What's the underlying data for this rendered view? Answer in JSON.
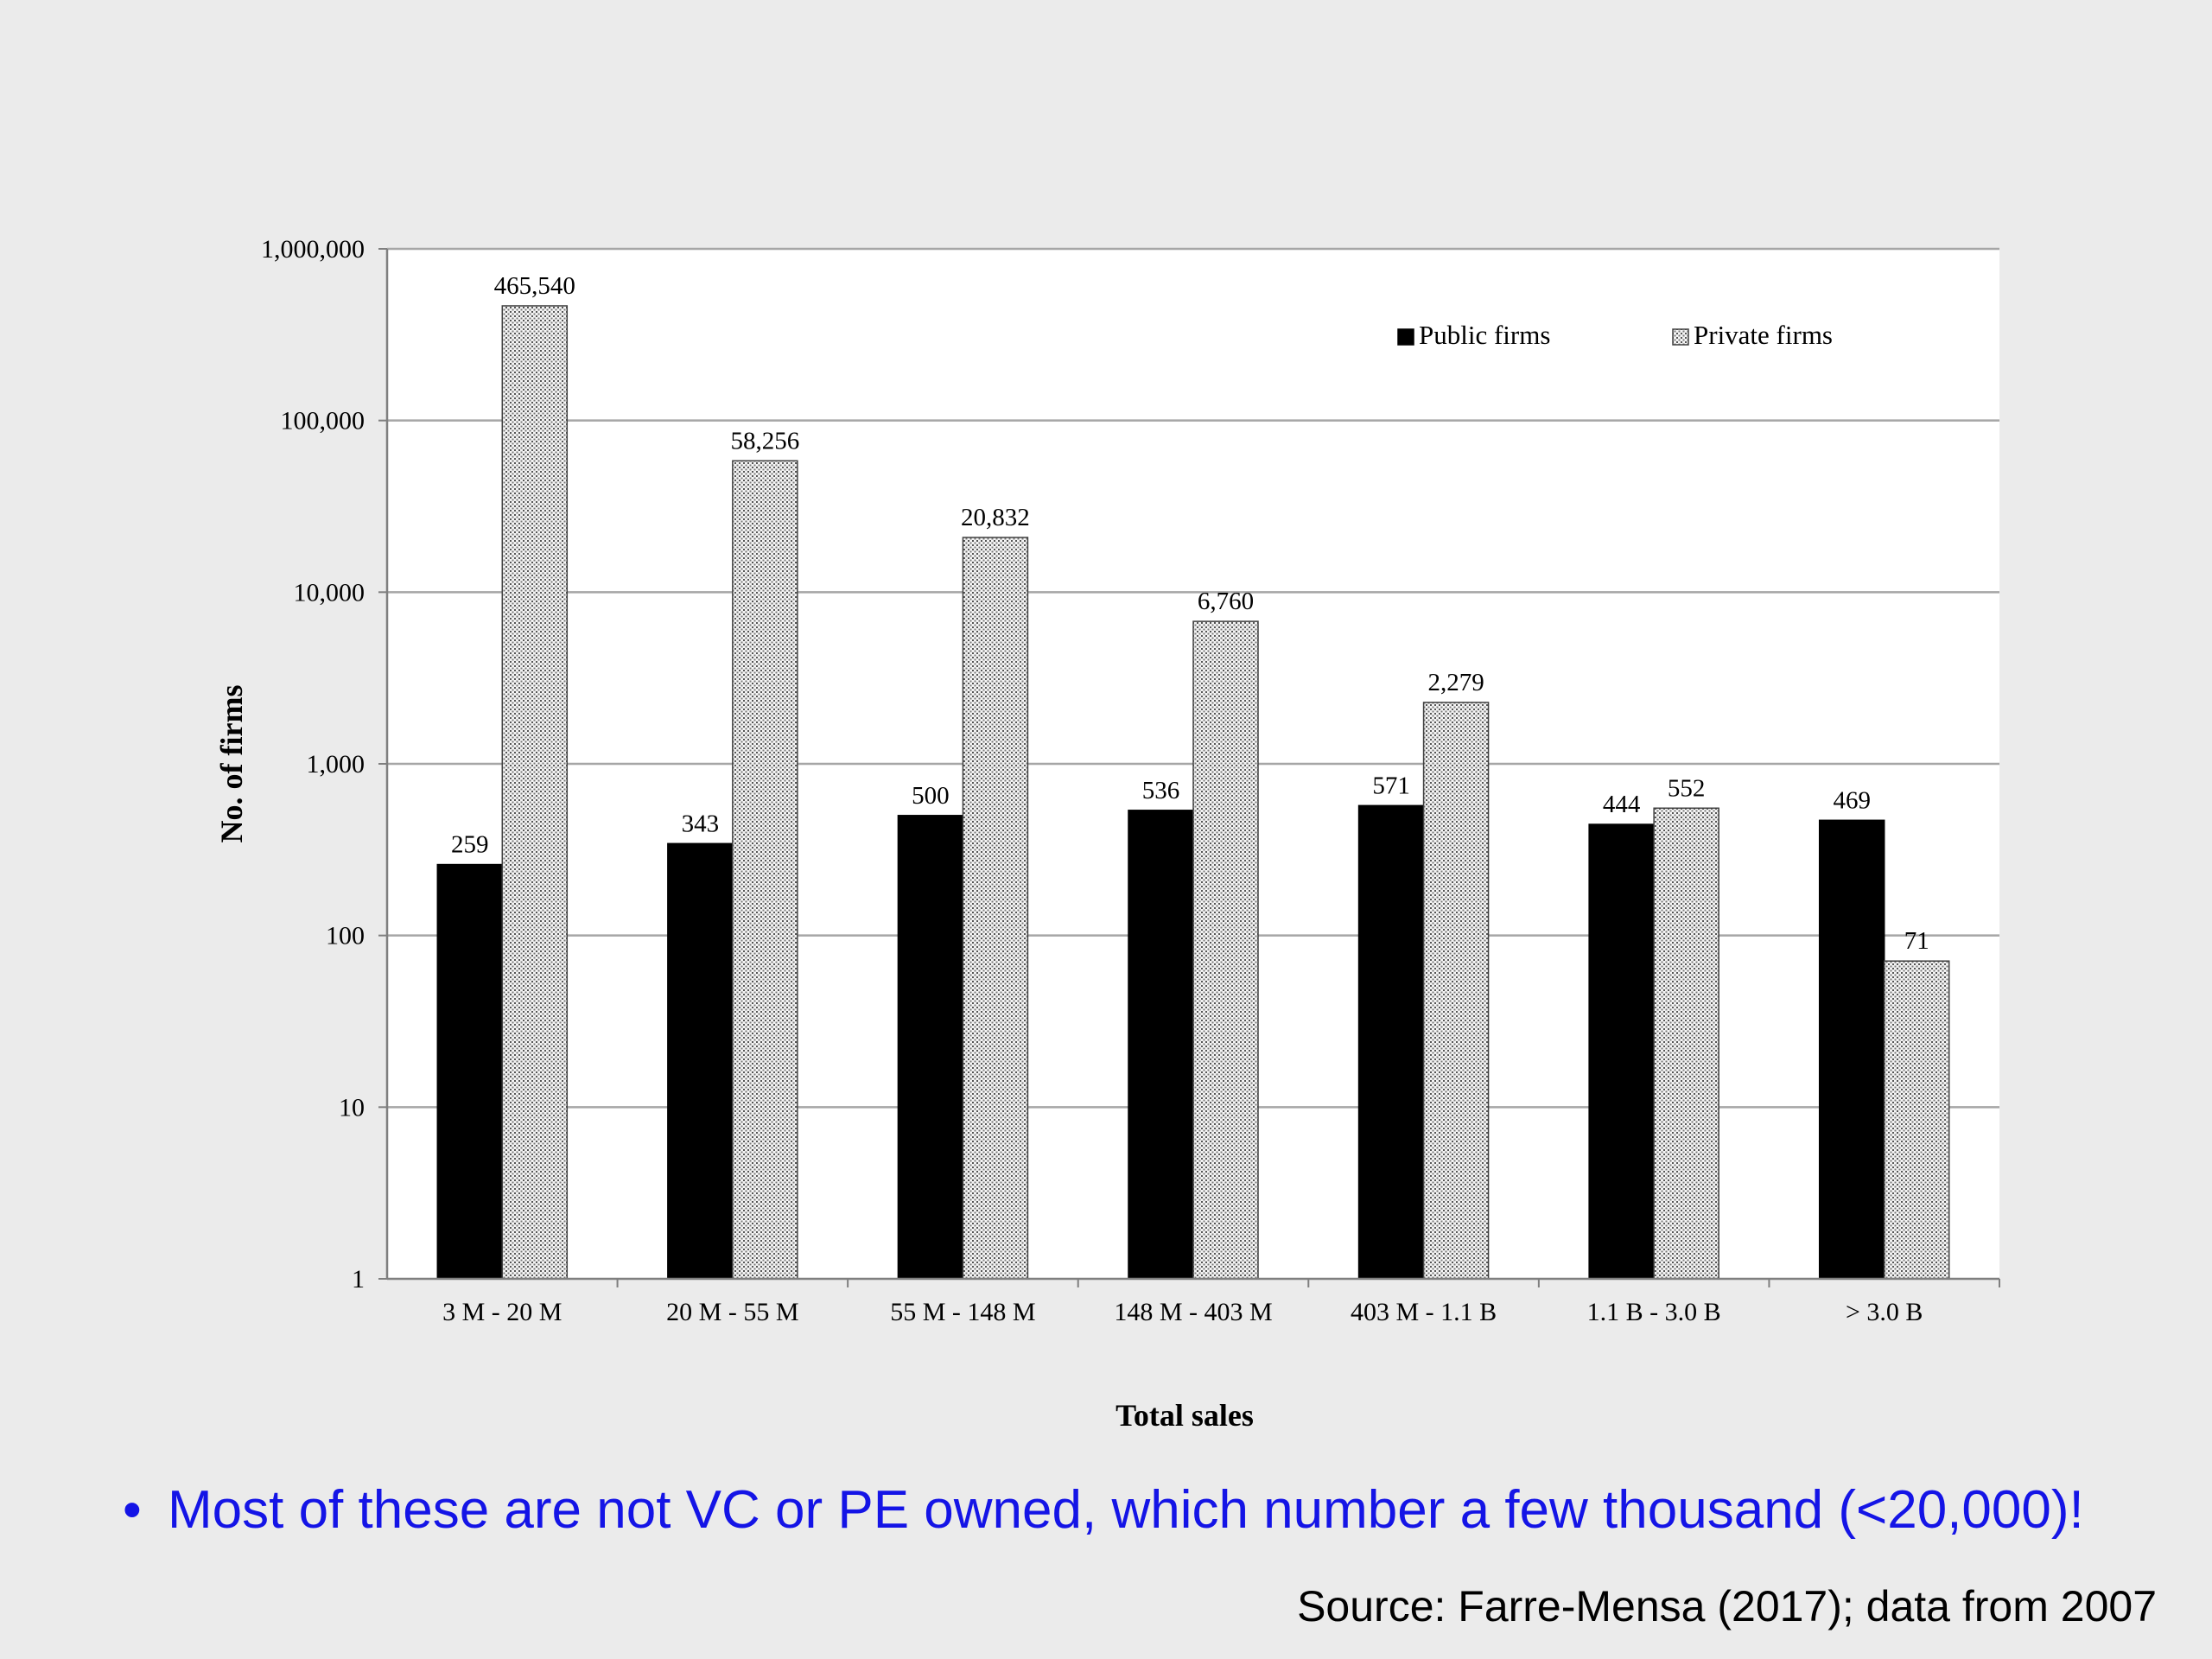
{
  "chart_data": {
    "type": "bar",
    "title": "",
    "xlabel": "Total sales",
    "ylabel": "No. of firms",
    "yscale": "log",
    "ylim": [
      1,
      1000000
    ],
    "yticks": [
      1,
      10,
      100,
      1000,
      10000,
      100000,
      1000000
    ],
    "ytick_labels": [
      "1",
      "10",
      "100",
      "1,000",
      "10,000",
      "100,000",
      "1,000,000"
    ],
    "grid": true,
    "legend_position": "top-right",
    "categories": [
      "3 M - 20 M",
      "20 M - 55 M",
      "55 M - 148 M",
      "148 M - 403 M",
      "403 M - 1.1 B",
      "1.1 B - 3.0 B",
      "> 3.0 B"
    ],
    "series": [
      {
        "name": "Public firms",
        "color": "#000000",
        "values": [
          259,
          343,
          500,
          536,
          571,
          444,
          469
        ],
        "labels": [
          "259",
          "343",
          "500",
          "536",
          "571",
          "444",
          "469"
        ]
      },
      {
        "name": "Private firms",
        "color": "#d9d9d9",
        "values": [
          465540,
          58256,
          20832,
          6760,
          2279,
          552,
          71
        ],
        "labels": [
          "465,540",
          "58,256",
          "20,832",
          "6,760",
          "2,279",
          "552",
          "71"
        ]
      }
    ]
  },
  "slide": {
    "bullet_text": "Most of these are not VC or PE owned, which number a few thousand (<20,000)!",
    "bullet_symbol": "•",
    "source_text": "Source: Farre-Mensa (2017); data from 2007"
  }
}
